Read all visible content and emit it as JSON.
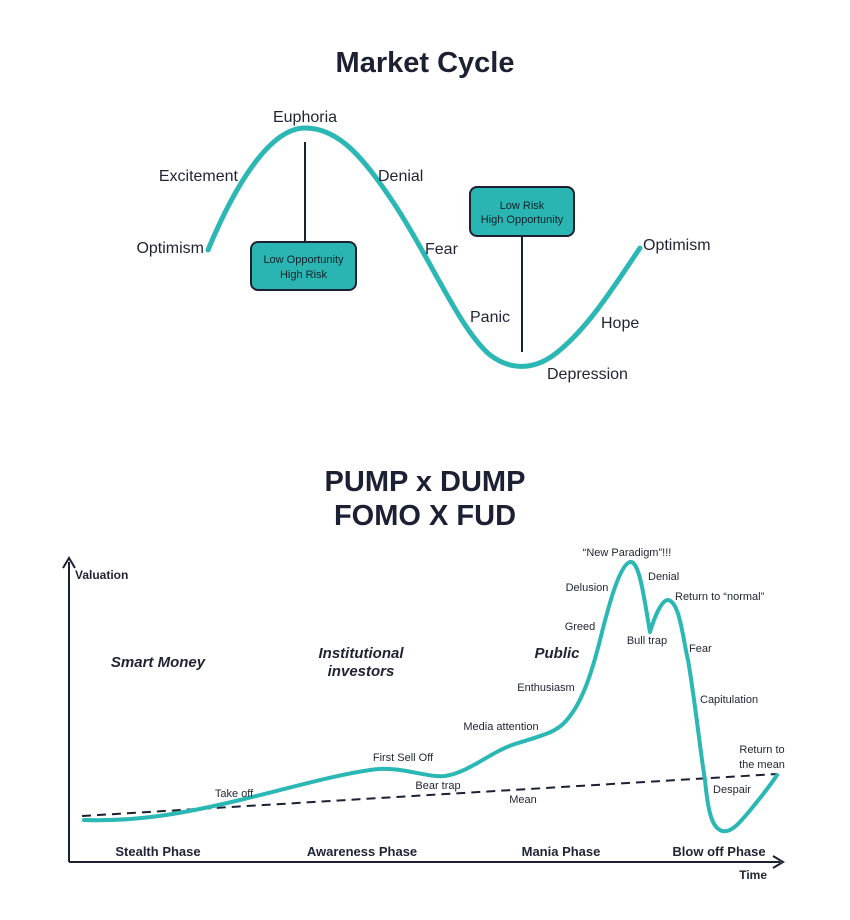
{
  "colors": {
    "accent": "#2bb7b4",
    "ink": "#1c2033",
    "box_fill": "#2ab5b2"
  },
  "cycle": {
    "title": "Market Cycle",
    "labels": {
      "optimism_left": "Optimism",
      "excitement": "Excitement",
      "euphoria": "Euphoria",
      "denial": "Denial",
      "fear": "Fear",
      "panic": "Panic",
      "depression": "Depression",
      "hope": "Hope",
      "optimism_right": "Optimism"
    },
    "box_top": {
      "line1": "Low Opportunity",
      "line2": "High Risk"
    },
    "box_bottom": {
      "line1": "Low Risk",
      "line2": "High Opportunity"
    }
  },
  "pump": {
    "title_line1": "PUMP x DUMP",
    "title_line2": "FOMO X FUD",
    "axis": {
      "y": "Valuation",
      "x": "Time"
    },
    "groups": {
      "smart_money": "Smart Money",
      "institutional_1": "Institutional",
      "institutional_2": "investors",
      "public": "Public"
    },
    "phases": {
      "stealth": "Stealth Phase",
      "awareness": "Awareness Phase",
      "mania": "Mania Phase",
      "blowoff": "Blow off Phase"
    },
    "labels": {
      "take_off": "Take off",
      "first_sell_off": "First Sell Off",
      "bear_trap": "Bear trap",
      "mean": "Mean",
      "media_attention": "Media attention",
      "enthusiasm": "Enthusiasm",
      "greed": "Greed",
      "delusion": "Delusion",
      "new_paradigm": "“New Paradigm”!!!",
      "denial": "Denial",
      "return_normal": "Return to “normal”",
      "bull_trap": "Bull trap",
      "fear": "Fear",
      "capitulation": "Capitulation",
      "return_mean_1": "Return to",
      "return_mean_2": "the mean",
      "despair": "Despair"
    }
  }
}
